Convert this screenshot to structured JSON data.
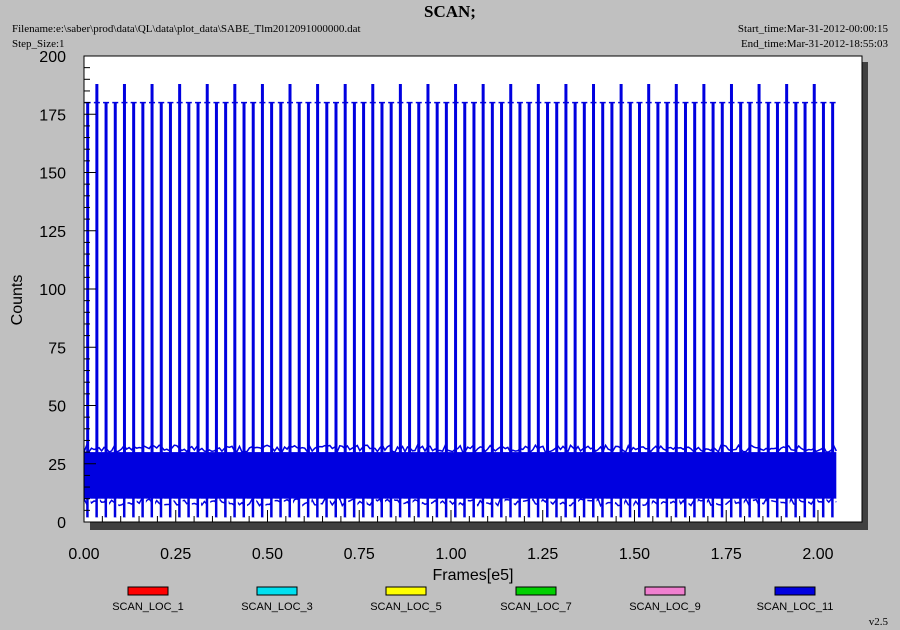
{
  "header": {
    "title": "SCAN;",
    "filename": "Filename:e:\\saber\\prod\\data\\QL\\data\\plot_data\\SABE_Tlm2012091000000.dat",
    "step_size": "Step_Size:1",
    "start_time": "Start_time:Mar-31-2012-00:00:15",
    "end_time": "End_time:Mar-31-2012-18:55:03"
  },
  "version": "v2.5",
  "colors": {
    "background": "#c0c0c0",
    "plot_bg": "#ffffff",
    "shadow": "#404040"
  },
  "chart_data": {
    "type": "line",
    "title": "SCAN;",
    "xlabel": "Frames[e5]",
    "ylabel": "Counts",
    "xlim": [
      0,
      2.12
    ],
    "ylim": [
      0,
      200
    ],
    "x_ticks": [
      "0.00",
      "0.25",
      "0.50",
      "0.75",
      "1.00",
      "1.25",
      "1.50",
      "1.75",
      "2.00"
    ],
    "x_tick_values": [
      0,
      0.25,
      0.5,
      0.75,
      1.0,
      1.25,
      1.5,
      1.75,
      2.0
    ],
    "y_ticks": [
      "0",
      "25",
      "50",
      "75",
      "100",
      "125",
      "150",
      "175",
      "200"
    ],
    "y_tick_values": [
      0,
      25,
      50,
      75,
      100,
      125,
      150,
      175,
      200
    ],
    "grid": false,
    "legend_position": "bottom",
    "series": [
      {
        "name": "SCAN_LOC_1",
        "color": "#ff0000"
      },
      {
        "name": "SCAN_LOC_3",
        "color": "#00e0f0"
      },
      {
        "name": "SCAN_LOC_5",
        "color": "#ffff00"
      },
      {
        "name": "SCAN_LOC_7",
        "color": "#00d000"
      },
      {
        "name": "SCAN_LOC_9",
        "color": "#f080d0"
      },
      {
        "name": "SCAN_LOC_11",
        "color": "#0000e0"
      }
    ],
    "dominant_series": "SCAN_LOC_11",
    "data_x_range": [
      0,
      2.05
    ],
    "band_range": [
      10,
      30
    ],
    "spike_levels": [
      180,
      188
    ],
    "spike_count": 82
  }
}
